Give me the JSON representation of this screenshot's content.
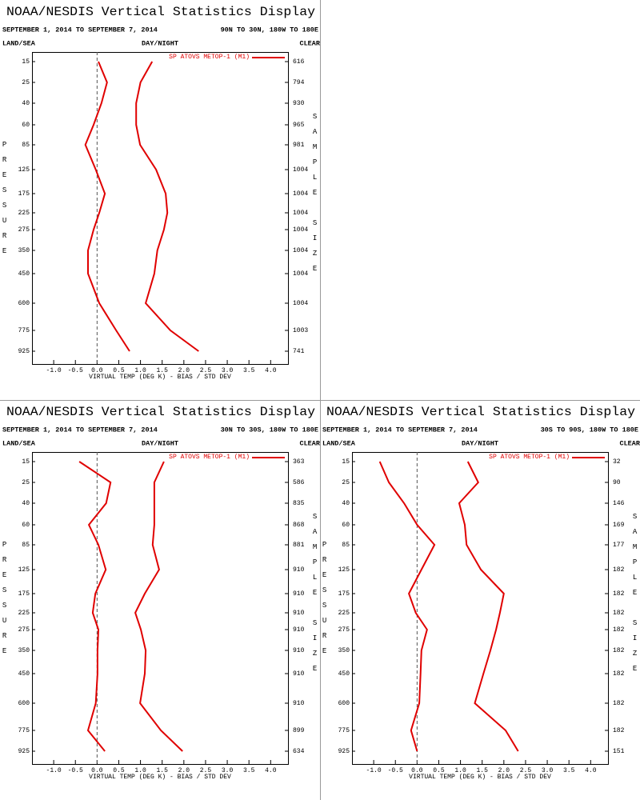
{
  "chart_data": [
    {
      "type": "line",
      "title": "NOAA/NESDIS Vertical Statistics Display",
      "subtitle": "SEPTEMBER 1, 2014 TO SEPTEMBER 7, 2014",
      "region": "90N TO 30N, 180W TO 180E",
      "land_sea": "LAND/SEA",
      "day_night": "DAY/NIGHT",
      "clear": "CLEAR",
      "y_label": "PRESSURE",
      "y2_label": "SAMPLE SIZE",
      "x_label": "VIRTUAL TEMP (DEG K) - BIAS / STD DEV",
      "categories": [
        "15",
        "25",
        "40",
        "60",
        "85",
        "125",
        "175",
        "225",
        "275",
        "350",
        "450",
        "600",
        "775",
        "925"
      ],
      "sample_size": [
        616,
        794,
        930,
        965,
        981,
        1004,
        1004,
        1004,
        1004,
        1004,
        1004,
        1004,
        1003,
        741
      ],
      "series": [
        {
          "name": "SP ATOVS METOP-1 (M1)",
          "color": "#e00000",
          "values": [
            0.03,
            0.23,
            0.1,
            -0.08,
            -0.27,
            -0.03,
            0.18,
            0.05,
            -0.08,
            -0.21,
            -0.21,
            0.05,
            0.44,
            0.75
          ]
        },
        {
          "color": "#e00000",
          "values": [
            1.27,
            1.0,
            0.9,
            0.9,
            0.99,
            1.36,
            1.58,
            1.62,
            1.54,
            1.39,
            1.32,
            1.12,
            1.69,
            2.34
          ]
        }
      ],
      "xlim": [
        -1.5,
        4.4
      ],
      "xticks": [
        {
          "value": -1,
          "label": "-1.0"
        },
        -0.5,
        {
          "value": 0,
          "label": "0.0"
        },
        0.5,
        {
          "value": 1,
          "label": "1.0"
        },
        1.5,
        {
          "value": 2,
          "label": "2.0"
        },
        2.5,
        {
          "value": 3,
          "label": "3.0"
        },
        3.5,
        {
          "value": 4,
          "label": "4.0"
        }
      ]
    },
    {
      "type": "line",
      "title": "NOAA/NESDIS Vertical Statistics Display",
      "subtitle": "SEPTEMBER 1, 2014 TO SEPTEMBER 7, 2014",
      "region": "30N TO 30S, 180W TO 180E",
      "land_sea": "LAND/SEA",
      "day_night": "DAY/NIGHT",
      "clear": "CLEAR",
      "y_label": "PRESSURE",
      "y2_label": "SAMPLE SIZE",
      "x_label": "VIRTUAL TEMP (DEG K) - BIAS / STD DEV",
      "categories": [
        "15",
        "25",
        "40",
        "60",
        "85",
        "125",
        "175",
        "225",
        "275",
        "350",
        "450",
        "600",
        "775",
        "925"
      ],
      "sample_size": [
        363,
        586,
        835,
        868,
        881,
        910,
        910,
        910,
        910,
        910,
        910,
        910,
        899,
        634
      ],
      "series": [
        {
          "name": "SP ATOVS METOP-1 (M1)",
          "color": "#e00000",
          "values": [
            -0.41,
            0.31,
            0.21,
            -0.19,
            0.03,
            0.2,
            -0.04,
            -0.1,
            0.03,
            0.01,
            0.01,
            -0.03,
            -0.21,
            0.18
          ]
        },
        {
          "color": "#e00000",
          "values": [
            1.54,
            1.32,
            1.32,
            1.32,
            1.28,
            1.43,
            1.1,
            0.88,
            1.01,
            1.12,
            1.1,
            0.99,
            1.47,
            1.97
          ]
        }
      ],
      "xlim": [
        -1.5,
        4.4
      ],
      "xticks": [
        {
          "value": -1,
          "label": "-1.0"
        },
        -0.5,
        {
          "value": 0,
          "label": "0.0"
        },
        0.5,
        {
          "value": 1,
          "label": "1.0"
        },
        1.5,
        {
          "value": 2,
          "label": "2.0"
        },
        2.5,
        {
          "value": 3,
          "label": "3.0"
        },
        3.5,
        {
          "value": 4,
          "label": "4.0"
        }
      ]
    },
    {
      "type": "line",
      "title": "NOAA/NESDIS Vertical Statistics Display",
      "subtitle": "SEPTEMBER 1, 2014 TO SEPTEMBER 7, 2014",
      "region": "30S TO 90S, 180W TO 180E",
      "land_sea": "LAND/SEA",
      "day_night": "DAY/NIGHT",
      "clear": "CLEAR",
      "y_label": "PRESSURE",
      "y2_label": "SAMPLE SIZE",
      "x_label": "VIRTUAL TEMP (DEG K) - BIAS / STD DEV",
      "categories": [
        "15",
        "25",
        "40",
        "60",
        "85",
        "125",
        "175",
        "225",
        "275",
        "350",
        "450",
        "600",
        "775",
        "925"
      ],
      "sample_size": [
        32,
        90,
        146,
        169,
        177,
        182,
        182,
        182,
        182,
        182,
        182,
        182,
        182,
        151
      ],
      "series": [
        {
          "name": "SP ATOVS METOP-1 (M1)",
          "color": "#e00000",
          "values": [
            -0.86,
            -0.65,
            -0.3,
            0,
            0.4,
            0.1,
            -0.19,
            -0.03,
            0.23,
            0.1,
            0.08,
            0.05,
            -0.14,
            0
          ]
        },
        {
          "color": "#e00000",
          "values": [
            1.17,
            1.41,
            0.97,
            1.1,
            1.14,
            1.47,
            2.0,
            1.91,
            1.82,
            1.69,
            1.53,
            1.33,
            2.04,
            2.33
          ]
        }
      ],
      "xlim": [
        -1.5,
        4.4
      ],
      "xticks": [
        {
          "value": -1,
          "label": "-1.0"
        },
        -0.5,
        {
          "value": 0,
          "label": "0.0"
        },
        0.5,
        {
          "value": 1,
          "label": "1.0"
        },
        1.5,
        {
          "value": 2,
          "label": "2.0"
        },
        2.5,
        {
          "value": 3,
          "label": "3.0"
        },
        3.5,
        {
          "value": 4,
          "label": "4.0"
        }
      ]
    }
  ]
}
